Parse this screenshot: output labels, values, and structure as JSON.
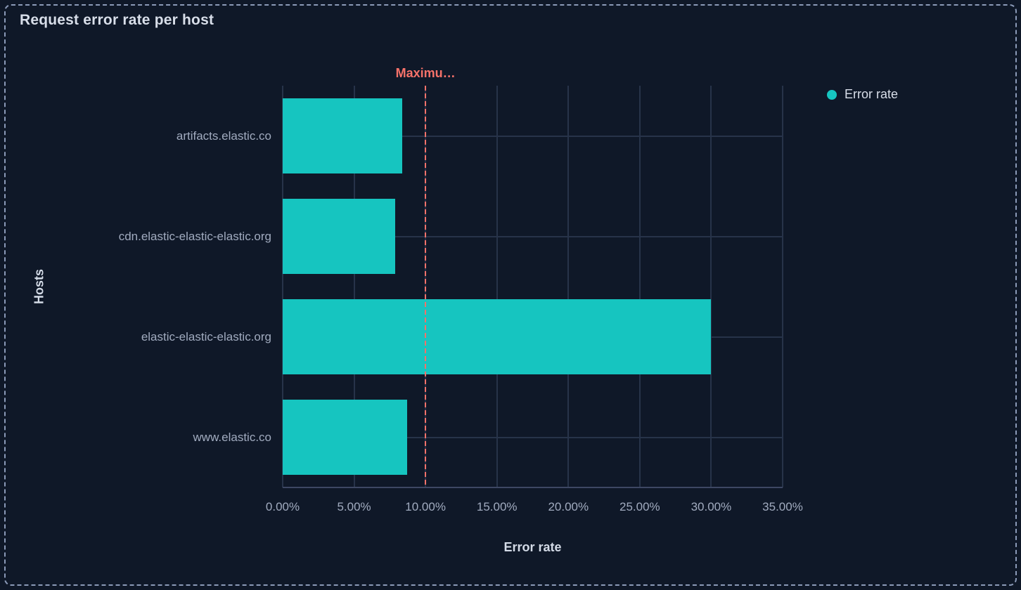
{
  "panel": {
    "title": "Request error rate per host"
  },
  "legend": {
    "position": "top-right",
    "items": [
      {
        "label": "Error rate",
        "color": "#16c5c0"
      }
    ]
  },
  "chart_data": {
    "type": "bar",
    "orientation": "horizontal",
    "title": "Request error rate per host",
    "categories": [
      "artifacts.elastic.co",
      "cdn.elastic-elastic-elastic.org",
      "elastic-elastic-elastic.org",
      "www.elastic.co"
    ],
    "series": [
      {
        "name": "Error rate",
        "color": "#16c5c0",
        "values": [
          8.35,
          7.9,
          30,
          8.7
        ]
      }
    ],
    "xlabel": "Error rate",
    "ylabel": "Hosts",
    "xlim": [
      0,
      35
    ],
    "x_tick_values": [
      0,
      5,
      10,
      15,
      20,
      25,
      30,
      35
    ],
    "x_tick_labels": [
      "0.00%",
      "5.00%",
      "10.00%",
      "15.00%",
      "20.00%",
      "25.00%",
      "30.00%",
      "35.00%"
    ],
    "grid": true,
    "legend_position": "top-right",
    "annotation": {
      "type": "vertical-line",
      "label": "Maximu…",
      "value": 10,
      "style": "dashed",
      "color": "#f6726a"
    }
  },
  "colors": {
    "background": "#0f1828",
    "bar": "#16c5c0",
    "annotation": "#f6726a",
    "gridline": "#273349",
    "axis_text": "#a1abbf",
    "panel_border": "#8b9ab8"
  }
}
